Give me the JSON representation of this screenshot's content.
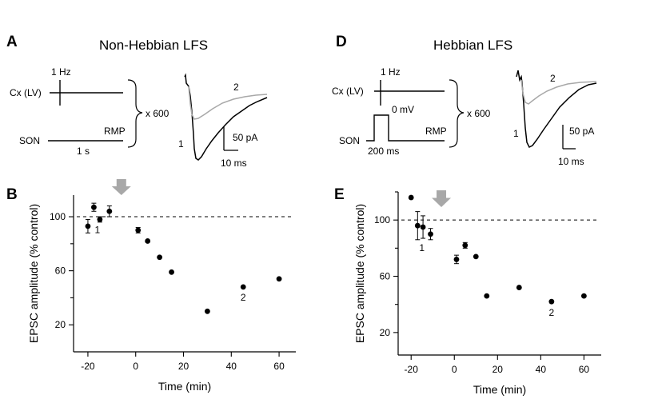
{
  "panels": {
    "A": {
      "letter": "A",
      "title": "Non-Hebbian LFS",
      "freq_label": "1 Hz",
      "cx_label": "Cx (LV)",
      "son_label": "SON",
      "rmp_label": "RMP",
      "duration_label": "1 s",
      "repeat_label": "x 600",
      "trace1_label": "1",
      "trace2_label": "2",
      "scale_current": "50 pA",
      "scale_time": "10 ms"
    },
    "D": {
      "letter": "D",
      "title": "Hebbian LFS",
      "freq_label": "1 Hz",
      "cx_label": "Cx (LV)",
      "son_label": "SON",
      "rmp_label": "RMP",
      "step_label": "0 mV",
      "duration_label": "200 ms",
      "repeat_label": "x 600",
      "trace1_label": "1",
      "trace2_label": "2",
      "scale_current": "50 pA",
      "scale_time": "10 ms"
    }
  },
  "colors": {
    "trace1": "#000000",
    "trace2": "#a8a8a8",
    "arrow": "#a8a8a8",
    "marker": "#000000"
  },
  "chart_data": [
    {
      "panel": "B",
      "type": "scatter",
      "title": "",
      "xlabel": "Time (min)",
      "ylabel": "EPSC amplitude (% control)",
      "xlim": [
        -26,
        67
      ],
      "ylim": [
        0,
        116
      ],
      "xticks": [
        -20,
        0,
        20,
        40,
        60
      ],
      "yticks": [
        20,
        60,
        100
      ],
      "baseline": 100,
      "lfs_arrow_x": -6,
      "point_labels": [
        {
          "text": "1",
          "x": -16,
          "y": 88
        },
        {
          "text": "2",
          "x": 45,
          "y": 38
        }
      ],
      "points": [
        {
          "x": -20,
          "y": 93,
          "err": 5
        },
        {
          "x": -17.5,
          "y": 107,
          "err": 3
        },
        {
          "x": -15,
          "y": 98,
          "err": 2
        },
        {
          "x": -11,
          "y": 104,
          "err": 4
        },
        {
          "x": 1,
          "y": 90,
          "err": 2
        },
        {
          "x": 5,
          "y": 82,
          "err": 1
        },
        {
          "x": 10,
          "y": 70,
          "err": 1
        },
        {
          "x": 15,
          "y": 59,
          "err": 1
        },
        {
          "x": 30,
          "y": 30,
          "err": 1
        },
        {
          "x": 45,
          "y": 48,
          "err": 1
        },
        {
          "x": 60,
          "y": 54,
          "err": 1
        }
      ]
    },
    {
      "panel": "E",
      "type": "scatter",
      "title": "",
      "xlabel": "Time (min)",
      "ylabel": "EPSC amplitude (% control)",
      "xlim": [
        -26,
        68
      ],
      "ylim": [
        4,
        120
      ],
      "xticks": [
        -20,
        0,
        20,
        40,
        60
      ],
      "yticks": [
        20,
        60,
        100
      ],
      "baseline": 100,
      "lfs_arrow_x": -6,
      "point_labels": [
        {
          "text": "1",
          "x": -15,
          "y": 78
        },
        {
          "text": "2",
          "x": 45,
          "y": 32
        }
      ],
      "points": [
        {
          "x": -20,
          "y": 116,
          "err": 1
        },
        {
          "x": -17,
          "y": 96,
          "err": 10
        },
        {
          "x": -14.5,
          "y": 95,
          "err": 8
        },
        {
          "x": -11,
          "y": 90,
          "err": 4
        },
        {
          "x": 1,
          "y": 72,
          "err": 3
        },
        {
          "x": 5,
          "y": 82,
          "err": 2
        },
        {
          "x": 10,
          "y": 74,
          "err": 1
        },
        {
          "x": 15,
          "y": 46,
          "err": 1
        },
        {
          "x": 30,
          "y": 52,
          "err": 1
        },
        {
          "x": 45,
          "y": 42,
          "err": 1
        },
        {
          "x": 60,
          "y": 46,
          "err": 1
        }
      ]
    }
  ]
}
